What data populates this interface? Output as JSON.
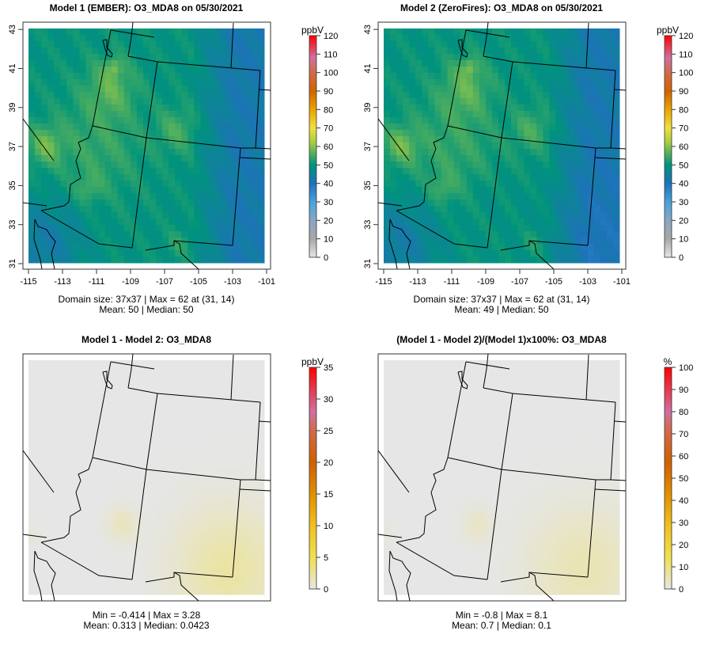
{
  "chart_data": [
    {
      "type": "heatmap",
      "title": "Model 1 (EMBER): O3_MDA8 on 05/30/2021",
      "xticks": [
        "-115",
        "-113",
        "-111",
        "-109",
        "-107",
        "-105",
        "-103",
        "-101"
      ],
      "yticks": [
        "31",
        "33",
        "35",
        "37",
        "39",
        "41",
        "43"
      ],
      "colorbar": {
        "unit": "ppbV",
        "ticks": [
          "0",
          "10",
          "20",
          "30",
          "40",
          "50",
          "60",
          "70",
          "80",
          "90",
          "100",
          "110",
          "120"
        ],
        "range": [
          0,
          120
        ]
      },
      "caption": [
        "Domain size: 37x37 | Max = 62 at (31, 14)",
        "Mean: 50 |  Median: 50"
      ],
      "stats": {
        "max": 62,
        "mean": 50,
        "median": 50
      }
    },
    {
      "type": "heatmap",
      "title": "Model 2 (ZeroFires): O3_MDA8 on 05/30/2021",
      "xticks": [
        "-115",
        "-113",
        "-111",
        "-109",
        "-107",
        "-105",
        "-103",
        "-101"
      ],
      "yticks": [
        "31",
        "33",
        "35",
        "37",
        "39",
        "41",
        "43"
      ],
      "colorbar": {
        "unit": "ppbV",
        "ticks": [
          "0",
          "10",
          "20",
          "30",
          "40",
          "50",
          "60",
          "70",
          "80",
          "90",
          "100",
          "110",
          "120"
        ],
        "range": [
          0,
          120
        ]
      },
      "caption": [
        "Domain size: 37x37 | Max = 62 at (31, 14)",
        "Mean: 49 |  Median: 50"
      ],
      "stats": {
        "max": 62,
        "mean": 49,
        "median": 50
      }
    },
    {
      "type": "heatmap",
      "title": "Model 1 - Model 2: O3_MDA8",
      "colorbar": {
        "unit": "ppbV",
        "ticks": [
          "0",
          "5",
          "10",
          "15",
          "20",
          "25",
          "30",
          "35"
        ],
        "range": [
          0,
          35
        ]
      },
      "caption": [
        "Min = -0.414 | Max = 3.28",
        "Mean: 0.313 |  Median: 0.0423"
      ],
      "stats": {
        "min": -0.414,
        "max": 3.28,
        "mean": 0.313,
        "median": 0.0423
      }
    },
    {
      "type": "heatmap",
      "title": "(Model 1 - Model 2)/(Model 1)x100%: O3_MDA8",
      "colorbar": {
        "unit": "%",
        "ticks": [
          "0",
          "10",
          "20",
          "30",
          "40",
          "50",
          "60",
          "70",
          "80",
          "90",
          "100"
        ],
        "range": [
          0,
          100
        ]
      },
      "caption": [
        "Min = -0.8 | Max = 8.1",
        "Mean: 0.7 |  Median: 0.1"
      ],
      "stats": {
        "min": -0.8,
        "max": 8.1,
        "mean": 0.7,
        "median": 0.1
      }
    }
  ]
}
